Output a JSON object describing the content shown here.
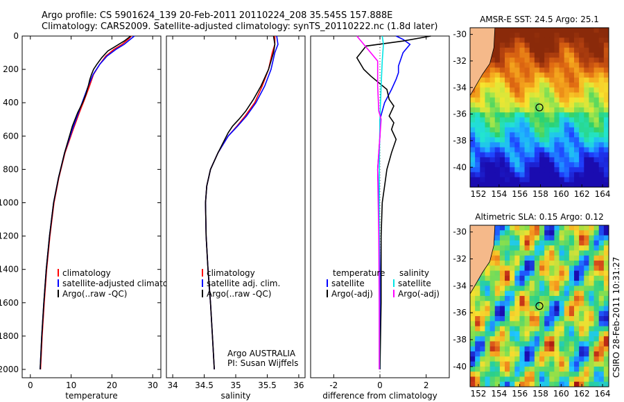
{
  "header": {
    "line1": "Argo profile: CS 5901624_139 20-Feb-2011 20110224_208 35.545S 157.888E",
    "line2": "Climatology: CARS2009. Satellite-adjusted climatology: synTS_20110222.nc (1.8d later)"
  },
  "colors": {
    "climatology": "#ff0000",
    "satellite": "#0000ff",
    "argo": "#000000",
    "salinity_satellite": "#00e5e5",
    "salinity_argo": "#ff00ff",
    "land": "#f5b98a"
  },
  "chart_data": [
    {
      "type": "line",
      "id": "temperature",
      "xlabel": "temperature",
      "ylabel": "",
      "xlim": [
        -2,
        32
      ],
      "ylim": [
        2050,
        0
      ],
      "xticks": [
        0,
        10,
        20,
        30
      ],
      "yticks": [
        0,
        200,
        400,
        600,
        800,
        1000,
        1200,
        1400,
        1600,
        1800,
        2000
      ],
      "legend": [
        "climatology",
        "satellite-adjusted climatology",
        "Argo(..raw -QC)"
      ],
      "series": [
        {
          "name": "climatology",
          "color": "#ff0000",
          "x": [
            24.8,
            24.0,
            22.5,
            20.5,
            18.5,
            17.0,
            15.5,
            14.5,
            13.3,
            12.0,
            10.5,
            8.5,
            7.0,
            5.8,
            4.8,
            4.0,
            3.4,
            2.9,
            2.5
          ],
          "y": [
            0,
            20,
            50,
            80,
            120,
            170,
            230,
            300,
            380,
            460,
            560,
            700,
            850,
            1000,
            1200,
            1400,
            1600,
            1800,
            2000
          ]
        },
        {
          "name": "satellite-adjusted climatology",
          "color": "#0000ff",
          "x": [
            25.5,
            24.5,
            23.0,
            21.0,
            18.8,
            17.0,
            15.4,
            14.2,
            13.0,
            11.8,
            10.3,
            8.4,
            6.9,
            5.7,
            4.7,
            3.9,
            3.3,
            2.8,
            2.4
          ],
          "y": [
            0,
            20,
            50,
            80,
            120,
            170,
            230,
            300,
            380,
            460,
            560,
            700,
            850,
            1000,
            1200,
            1400,
            1600,
            1800,
            2000
          ]
        },
        {
          "name": "Argo(..raw -QC)",
          "color": "#000000",
          "x": [
            24.6,
            23.0,
            21.0,
            19.0,
            17.5,
            16.3,
            15.5,
            15.0,
            14.6,
            14.2,
            13.6,
            12.8,
            11.6,
            10.3,
            8.4,
            6.9,
            5.7,
            4.7,
            3.9,
            3.3,
            2.8,
            2.4
          ],
          "y": [
            0,
            30,
            60,
            90,
            130,
            170,
            200,
            230,
            260,
            300,
            350,
            400,
            460,
            540,
            700,
            850,
            1000,
            1200,
            1400,
            1600,
            1800,
            2000
          ]
        }
      ]
    },
    {
      "type": "line",
      "id": "salinity",
      "xlabel": "salinity",
      "ylabel": "",
      "xlim": [
        33.9,
        36.1
      ],
      "ylim": [
        2050,
        0
      ],
      "xticks": [
        34,
        34.5,
        35,
        35.5,
        36
      ],
      "yticks": [],
      "legend": [
        "climatology",
        "satellite adj. clim.",
        "Argo(..raw -QC)"
      ],
      "annotation": [
        "Argo AUSTRALIA",
        "PI: Susan Wijffels"
      ],
      "series": [
        {
          "name": "climatology",
          "color": "#ff0000",
          "x": [
            35.62,
            35.62,
            35.58,
            35.52,
            35.42,
            35.3,
            35.15,
            35.02,
            34.88,
            34.72,
            34.6,
            34.54,
            34.52,
            34.53,
            34.56,
            34.6,
            34.63,
            34.66
          ],
          "y": [
            0,
            50,
            100,
            200,
            300,
            400,
            480,
            540,
            600,
            700,
            800,
            900,
            1000,
            1200,
            1400,
            1600,
            1800,
            2000
          ]
        },
        {
          "name": "satellite adj. clim.",
          "color": "#0000ff",
          "x": [
            35.65,
            35.67,
            35.62,
            35.56,
            35.46,
            35.32,
            35.17,
            35.03,
            34.88,
            34.72,
            34.6,
            34.54,
            34.52,
            34.53,
            34.56,
            34.6,
            34.63,
            34.66
          ],
          "y": [
            0,
            50,
            100,
            200,
            300,
            400,
            480,
            540,
            600,
            700,
            800,
            900,
            1000,
            1200,
            1400,
            1600,
            1800,
            2000
          ]
        },
        {
          "name": "Argo(..raw -QC)",
          "color": "#000000",
          "x": [
            35.6,
            35.62,
            35.6,
            35.52,
            35.4,
            35.28,
            35.16,
            35.05,
            34.95,
            34.88,
            34.72,
            34.6,
            34.54,
            34.52,
            34.53,
            34.56,
            34.6,
            34.63,
            34.66
          ],
          "y": [
            0,
            50,
            100,
            200,
            300,
            380,
            450,
            500,
            540,
            580,
            700,
            800,
            900,
            1000,
            1200,
            1400,
            1600,
            1800,
            2000
          ]
        }
      ]
    },
    {
      "type": "line",
      "id": "difference",
      "xlabel": "difference from climatology",
      "ylabel": "",
      "xlim": [
        -3,
        3
      ],
      "ylim": [
        2050,
        0
      ],
      "xticks": [
        -2,
        0,
        2
      ],
      "yticks": [],
      "legend_groups": [
        {
          "header": "temperature",
          "entries": [
            "satellite",
            "Argo(-adj)"
          ]
        },
        {
          "header": "salinity",
          "entries": [
            "satellite",
            "Argo(-adj)"
          ]
        }
      ],
      "series": [
        {
          "name": "temperature satellite",
          "color": "#0000ff",
          "x": [
            0.7,
            1.0,
            1.3,
            1.0,
            0.8,
            0.8,
            0.7,
            0.5,
            0.2,
            0.0,
            0.0,
            -0.1,
            -0.05,
            0.0,
            0.0,
            0.0
          ],
          "y": [
            0,
            20,
            50,
            100,
            180,
            220,
            260,
            320,
            400,
            500,
            600,
            800,
            1000,
            1400,
            1800,
            2000
          ]
        },
        {
          "name": "temperature Argo(-adj)",
          "color": "#000000",
          "x": [
            2.2,
            1.0,
            -0.6,
            -1.0,
            -0.7,
            -0.4,
            0.3,
            0.4,
            0.6,
            0.4,
            0.6,
            0.5,
            0.7,
            0.5,
            0.3,
            0.2,
            0.1,
            0.05,
            0.05,
            0.0
          ],
          "y": [
            0,
            30,
            60,
            130,
            200,
            240,
            320,
            380,
            420,
            480,
            520,
            560,
            620,
            700,
            800,
            900,
            1000,
            1200,
            1600,
            2000
          ]
        },
        {
          "name": "salinity satellite",
          "color": "#00e5e5",
          "x": [
            0.1,
            0.15,
            0.1,
            0.05,
            0.0,
            -0.02,
            -0.03,
            -0.03,
            -0.02,
            -0.02
          ],
          "y": [
            0,
            50,
            150,
            300,
            500,
            700,
            1000,
            1400,
            1800,
            2000
          ]
        },
        {
          "name": "salinity Argo(-adj)",
          "color": "#ff00ff",
          "x": [
            -1.0,
            -0.7,
            -0.1,
            -0.1,
            -0.05,
            0.05,
            0.0,
            -0.1,
            -0.05,
            -0.03,
            -0.03
          ],
          "y": [
            0,
            50,
            150,
            300,
            450,
            500,
            600,
            800,
            1200,
            1600,
            2000
          ]
        }
      ]
    },
    {
      "type": "heatmap",
      "id": "sst_map",
      "title": "AMSR-E SST: 24.5 Argo: 25.1",
      "xticks": [
        152,
        154,
        156,
        158,
        160,
        162,
        164
      ],
      "yticks": [
        -30,
        -32,
        -34,
        -36,
        -38,
        -40
      ],
      "xlim": [
        151.2,
        164.6
      ],
      "ylim": [
        -41.5,
        -29.5
      ],
      "marker": {
        "lon": 157.9,
        "lat": -35.5
      }
    },
    {
      "type": "heatmap",
      "id": "sla_map",
      "title": "Altimetric SLA: 0.15 Argo: 0.12",
      "xticks": [
        152,
        154,
        156,
        158,
        160,
        162,
        164
      ],
      "yticks": [
        -30,
        -32,
        -34,
        -36,
        -38,
        -40
      ],
      "xlim": [
        151.2,
        164.6
      ],
      "ylim": [
        -41.5,
        -29.5
      ],
      "marker": {
        "lon": 157.9,
        "lat": -35.5
      }
    }
  ],
  "side_label": "CSIRO 28-Feb-2011 10:31:27"
}
